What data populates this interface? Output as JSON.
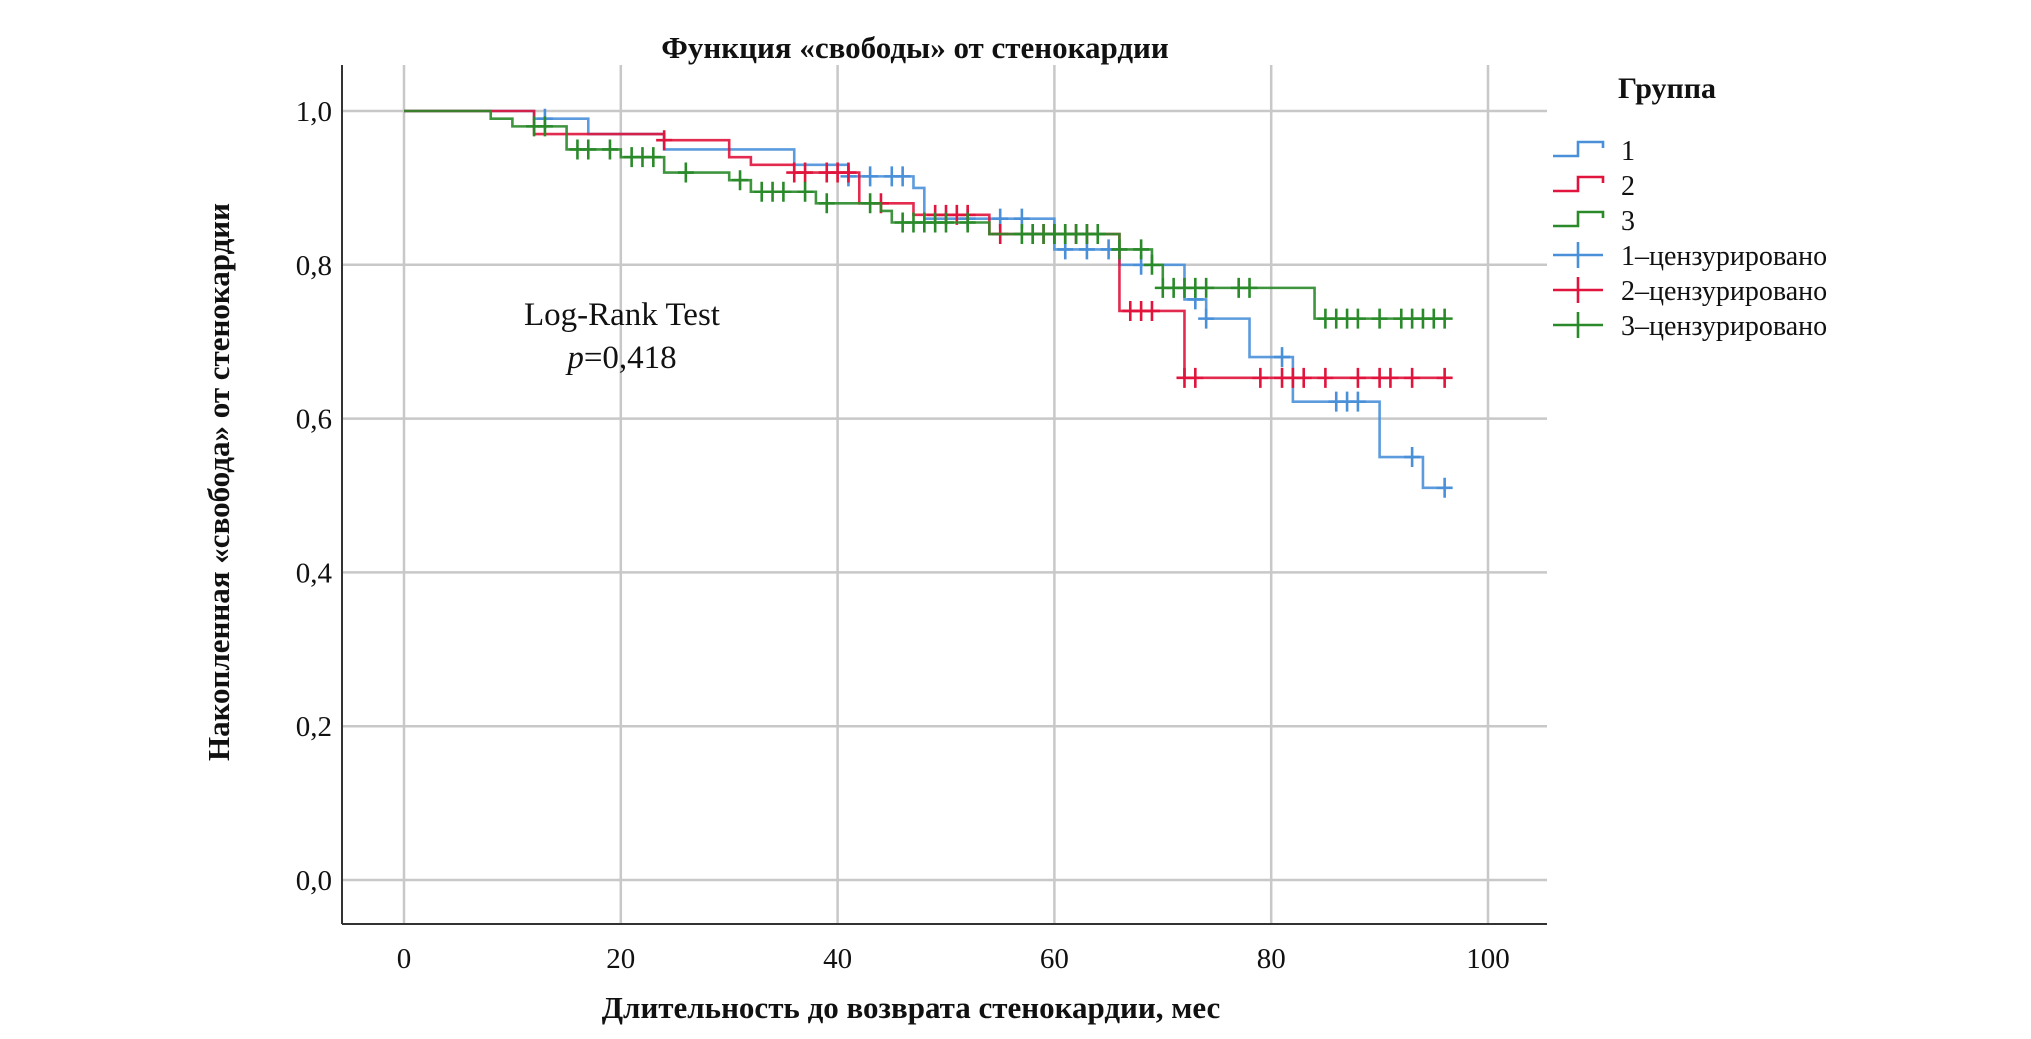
{
  "chart_data": {
    "type": "line",
    "subtype": "kaplan-meier",
    "title": "Функция «свободы» от стенокардии",
    "xlabel": "Длительность до возврата стенокардии, мес",
    "ylabel": "Накопленная «свобода» от стенокардии",
    "xlim": [
      -5,
      105
    ],
    "ylim": [
      -0.055,
      1.06
    ],
    "xticks": [
      0,
      20,
      40,
      60,
      80,
      100
    ],
    "xtick_labels": [
      "0",
      "20",
      "40",
      "60",
      "80",
      "100"
    ],
    "yticks": [
      0,
      0.2,
      0.4,
      0.6,
      0.8,
      1.0
    ],
    "ytick_labels": [
      "0,0",
      "0,2",
      "0,4",
      "0,6",
      "0,8",
      "1,0"
    ],
    "grid": true,
    "legend_title": "Группа",
    "legend_position": "right",
    "annotation": {
      "line1": "Log-Rank Test",
      "p_label": "p",
      "p_value": "=0,418"
    },
    "series": [
      {
        "name": "1",
        "censor_name": "1–цензурировано",
        "color": "#4a90d9",
        "steps": [
          [
            0,
            1.0
          ],
          [
            12,
            0.99
          ],
          [
            17,
            0.97
          ],
          [
            24,
            0.95
          ],
          [
            36,
            0.93
          ],
          [
            41,
            0.915
          ],
          [
            47,
            0.9
          ],
          [
            48,
            0.86
          ],
          [
            60,
            0.82
          ],
          [
            66,
            0.8
          ],
          [
            72,
            0.755
          ],
          [
            74,
            0.73
          ],
          [
            78,
            0.68
          ],
          [
            82,
            0.622
          ],
          [
            90,
            0.55
          ],
          [
            94,
            0.51
          ]
        ],
        "end": 96,
        "censored": [
          13,
          41,
          43,
          45,
          46,
          52,
          55,
          57,
          61,
          63,
          65,
          68,
          73,
          74,
          81,
          86,
          87,
          88,
          93,
          96
        ]
      },
      {
        "name": "2",
        "censor_name": "2–цензурировано",
        "color": "#e0143c",
        "steps": [
          [
            0,
            1.0
          ],
          [
            12,
            0.97
          ],
          [
            24,
            0.962
          ],
          [
            30,
            0.94
          ],
          [
            32,
            0.93
          ],
          [
            36,
            0.92
          ],
          [
            42,
            0.88
          ],
          [
            47,
            0.865
          ],
          [
            54,
            0.84
          ],
          [
            66,
            0.74
          ],
          [
            72,
            0.653
          ]
        ],
        "end": 96,
        "censored": [
          24,
          36,
          37,
          39,
          40,
          41,
          44,
          49,
          50,
          51,
          52,
          55,
          58,
          59,
          60,
          61,
          62,
          63,
          67,
          68,
          69,
          72,
          73,
          79,
          81,
          82,
          83,
          85,
          88,
          90,
          91,
          93,
          96
        ]
      },
      {
        "name": "3",
        "censor_name": "3–цензурировано",
        "color": "#2a8a2a",
        "steps": [
          [
            0,
            1.0
          ],
          [
            8,
            0.99
          ],
          [
            10,
            0.98
          ],
          [
            15,
            0.95
          ],
          [
            20,
            0.94
          ],
          [
            24,
            0.92
          ],
          [
            30,
            0.91
          ],
          [
            32,
            0.895
          ],
          [
            38,
            0.88
          ],
          [
            44,
            0.87
          ],
          [
            45,
            0.855
          ],
          [
            54,
            0.84
          ],
          [
            66,
            0.82
          ],
          [
            69,
            0.8
          ],
          [
            70,
            0.77
          ],
          [
            84,
            0.73
          ]
        ],
        "end": 96,
        "censored": [
          12,
          13,
          16,
          17,
          19,
          21,
          22,
          23,
          26,
          31,
          33,
          34,
          35,
          37,
          39,
          43,
          46,
          47,
          48,
          49,
          50,
          52,
          57,
          58,
          59,
          60,
          61,
          62,
          63,
          64,
          66,
          68,
          69,
          70,
          71,
          72,
          73,
          74,
          77,
          78,
          85,
          86,
          87,
          88,
          90,
          92,
          93,
          94,
          95,
          96
        ]
      }
    ]
  }
}
